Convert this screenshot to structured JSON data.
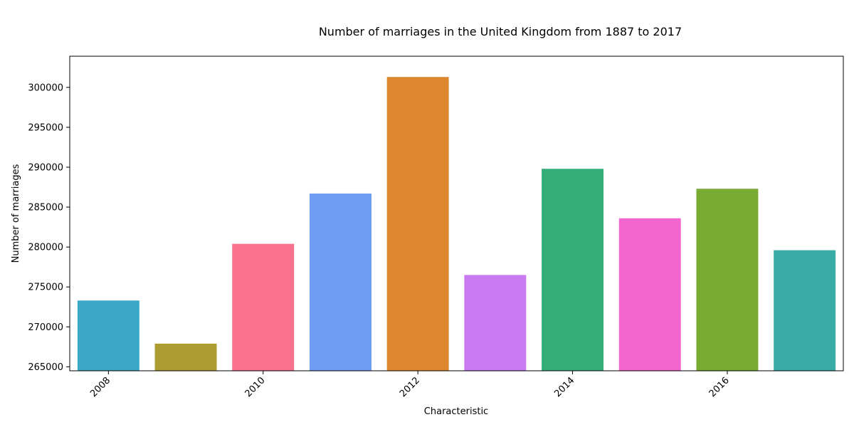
{
  "chart_data": {
    "type": "bar",
    "title": "Number of marriages in the United Kingdom from 1887 to 2017",
    "xlabel": "Characteristic",
    "ylabel": "Number of marriages",
    "categories": [
      2008,
      2009,
      2010,
      2011,
      2012,
      2013,
      2014,
      2015,
      2016,
      2017
    ],
    "values": [
      273300,
      267900,
      280400,
      286700,
      301300,
      276500,
      289800,
      283600,
      287300,
      279600
    ],
    "colors": [
      "#3ba8c7",
      "#ad9c30",
      "#f7728a",
      "#6e9cf3",
      "#dd8831",
      "#c97af0",
      "#33ae77",
      "#f466cf",
      "#79ab33",
      "#39aca6"
    ],
    "xticks": [
      2008,
      2010,
      2012,
      2014,
      2016
    ],
    "yticks": [
      265000,
      270000,
      275000,
      280000,
      285000,
      290000,
      295000,
      300000
    ],
    "ylim": [
      264500,
      303900
    ],
    "xlim": [
      2007.5,
      2017.5
    ],
    "grid": false,
    "legend": "none"
  }
}
